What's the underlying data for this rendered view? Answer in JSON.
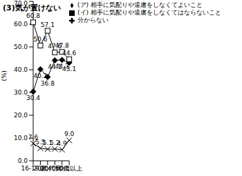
{
  "chart_data": {
    "type": "line",
    "title": "(3)気が置けない",
    "y_label": "(%)",
    "categories": [
      "16-19歳",
      "20代",
      "30代",
      "40代",
      "50代",
      "60歳以上"
    ],
    "ylim": [
      0,
      70
    ],
    "yticks": [
      {
        "value": 0,
        "label": "0.0"
      },
      {
        "value": 10,
        "label": "10.0"
      },
      {
        "value": 20,
        "label": "20.0"
      },
      {
        "value": 30,
        "label": "30.0"
      },
      {
        "value": 40,
        "label": "40.0"
      },
      {
        "value": 50,
        "label": "50.0"
      },
      {
        "value": 60,
        "label": "60.0"
      },
      {
        "value": 70,
        "label": "70.0"
      }
    ],
    "grid": false,
    "data_labels": true,
    "legend": "upper right",
    "series": [
      {
        "name": "(ア) 相手に気配りや遠慮をしなくてよいこと",
        "color": "#000000",
        "marker": "diamond",
        "values": [
          30.4,
          40.2,
          36.8,
          44.1,
          44.3,
          43.1
        ]
      },
      {
        "name": "(イ) 相手に気配りや遠慮をしなくてはならないこと",
        "color": "#000000",
        "marker": "square",
        "values": [
          60.8,
          50.6,
          57.1,
          47.6,
          47.8,
          44.6
        ]
      },
      {
        "name": "分からない",
        "color": "#000000",
        "marker": "x",
        "values": [
          7.6,
          5.5,
          5.1,
          5.2,
          4.9,
          9.0
        ],
        "value_labels": [
          "7.6",
          "5.5",
          "5.1",
          "5.2",
          "4.9",
          "9.0"
        ]
      }
    ]
  }
}
